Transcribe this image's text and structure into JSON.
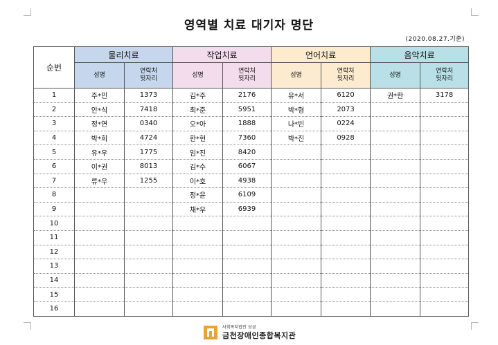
{
  "title": "영역별 치료 대기자 명단",
  "date_note": "(2020.08.27.기준)",
  "header": {
    "seq": "순번",
    "groups": [
      "물리치료",
      "작업치료",
      "언어치료",
      "음악치료"
    ],
    "name_label": "성명",
    "contact_label_1": "연락처",
    "contact_label_2": "뒷자리"
  },
  "colors": {
    "physical": "#c6d6ec",
    "occupational": "#f3dcec",
    "speech": "#fdebd0",
    "music": "#b9e0e6"
  },
  "rows": [
    {
      "n": "1",
      "c": [
        [
          "주*민",
          "1373"
        ],
        [
          "김*주",
          "2176"
        ],
        [
          "유*서",
          "6120"
        ],
        [
          "권*한",
          "3178"
        ]
      ]
    },
    {
      "n": "2",
      "c": [
        [
          "안*식",
          "7418"
        ],
        [
          "최*준",
          "5951"
        ],
        [
          "박*형",
          "2073"
        ],
        [
          "",
          ""
        ]
      ]
    },
    {
      "n": "3",
      "c": [
        [
          "정*연",
          "0340"
        ],
        [
          "오*아",
          "1888"
        ],
        [
          "나*빈",
          "0224"
        ],
        [
          "",
          ""
        ]
      ]
    },
    {
      "n": "4",
      "c": [
        [
          "박*희",
          "4724"
        ],
        [
          "한*현",
          "7360"
        ],
        [
          "박*진",
          "0928"
        ],
        [
          "",
          ""
        ]
      ]
    },
    {
      "n": "5",
      "c": [
        [
          "유*우",
          "1775"
        ],
        [
          "임*진",
          "8420"
        ],
        [
          "",
          ""
        ],
        [
          "",
          ""
        ]
      ]
    },
    {
      "n": "6",
      "c": [
        [
          "이*권",
          "8013"
        ],
        [
          "김*수",
          "6067"
        ],
        [
          "",
          ""
        ],
        [
          "",
          ""
        ]
      ]
    },
    {
      "n": "7",
      "c": [
        [
          "류*우",
          "1255"
        ],
        [
          "이*호",
          "4938"
        ],
        [
          "",
          ""
        ],
        [
          "",
          ""
        ]
      ]
    },
    {
      "n": "8",
      "c": [
        [
          "",
          ""
        ],
        [
          "정*윤",
          "6109"
        ],
        [
          "",
          ""
        ],
        [
          "",
          ""
        ]
      ]
    },
    {
      "n": "9",
      "c": [
        [
          "",
          ""
        ],
        [
          "채*우",
          "6939"
        ],
        [
          "",
          ""
        ],
        [
          "",
          ""
        ]
      ]
    },
    {
      "n": "10",
      "c": [
        [
          "",
          ""
        ],
        [
          "",
          ""
        ],
        [
          "",
          ""
        ],
        [
          "",
          ""
        ]
      ]
    },
    {
      "n": "11",
      "c": [
        [
          "",
          ""
        ],
        [
          "",
          ""
        ],
        [
          "",
          ""
        ],
        [
          "",
          ""
        ]
      ]
    },
    {
      "n": "12",
      "c": [
        [
          "",
          ""
        ],
        [
          "",
          ""
        ],
        [
          "",
          ""
        ],
        [
          "",
          ""
        ]
      ]
    },
    {
      "n": "13",
      "c": [
        [
          "",
          ""
        ],
        [
          "",
          ""
        ],
        [
          "",
          ""
        ],
        [
          "",
          ""
        ]
      ]
    },
    {
      "n": "14",
      "c": [
        [
          "",
          ""
        ],
        [
          "",
          ""
        ],
        [
          "",
          ""
        ],
        [
          "",
          ""
        ]
      ]
    },
    {
      "n": "15",
      "c": [
        [
          "",
          ""
        ],
        [
          "",
          ""
        ],
        [
          "",
          ""
        ],
        [
          "",
          ""
        ]
      ]
    },
    {
      "n": "16",
      "c": [
        [
          "",
          ""
        ],
        [
          "",
          ""
        ],
        [
          "",
          ""
        ],
        [
          "",
          ""
        ]
      ]
    }
  ],
  "footer": {
    "org_sub": "사회복지법인 상금",
    "org_name": "금천장애인종합복지관",
    "logo_icon": "building-logo-icon"
  }
}
